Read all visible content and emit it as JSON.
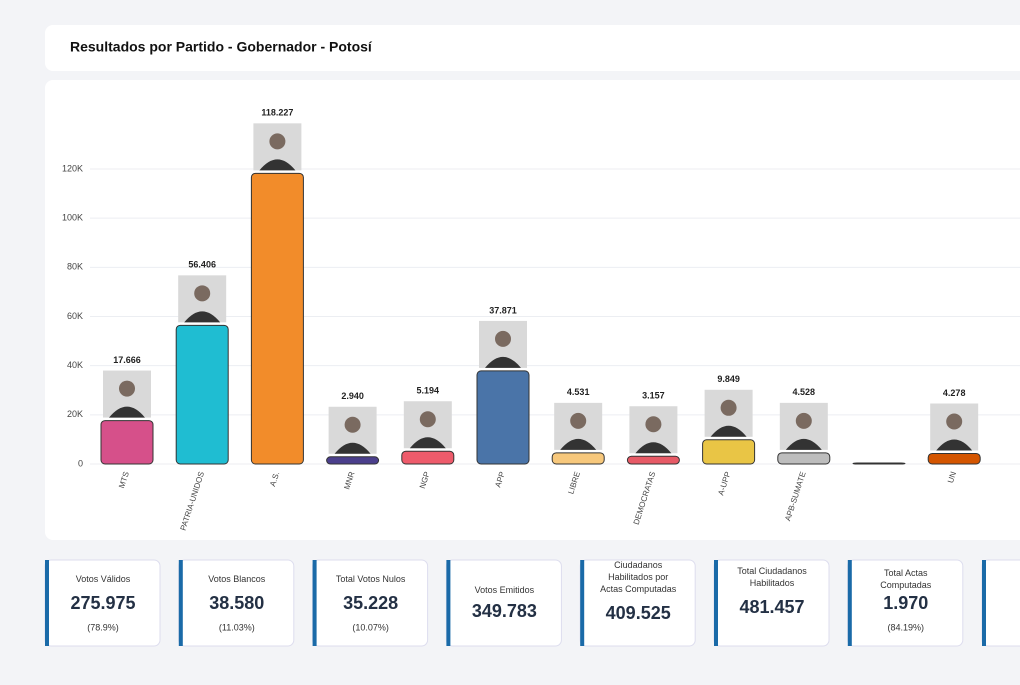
{
  "title": "Resultados por Partido - Gobernador - Potosí",
  "chart_data": {
    "type": "bar",
    "categories": [
      "MTS",
      "PATRIA-UNIDOS",
      "A.S.",
      "MNR",
      "NGP",
      "APP",
      "LIBRE",
      "DEMOCRATAS",
      "A-UPP",
      "APB-SUMATE",
      null,
      "UN"
    ],
    "values": [
      17666,
      56406,
      118227,
      2940,
      5194,
      37871,
      4531,
      3157,
      9849,
      4528,
      300,
      4278
    ],
    "value_labels": [
      "17.666",
      "56.406",
      "118.227",
      "2.940",
      "5.194",
      "37.871",
      "4.531",
      "3.157",
      "9.849",
      "4.528",
      null,
      "4.278"
    ],
    "colors": [
      "#d6508a",
      "#1fbdd2",
      "#f28c2a",
      "#4b3f8c",
      "#ee5b6b",
      "#4a74a8",
      "#f7c87c",
      "#e75a66",
      "#e9c545",
      "#bdbdbd",
      "#444444",
      "#d45500"
    ],
    "ylim": [
      0,
      120000
    ],
    "yticks": [
      0,
      {
        "value": 20000,
        "label": "20K"
      },
      {
        "value": 40000,
        "label": "40K"
      },
      {
        "value": 60000,
        "label": "60K"
      },
      {
        "value": 80000,
        "label": "80K"
      },
      {
        "value": 100000,
        "label": "100K"
      },
      {
        "value": 120000,
        "label": "120K"
      }
    ],
    "grid": true
  },
  "stats": [
    {
      "label": "Votos Válidos",
      "value": "275.975",
      "percent": "(78.9%)"
    },
    {
      "label": "Votos Blancos",
      "value": "38.580",
      "percent": "(11.03%)"
    },
    {
      "label": "Total Votos Nulos",
      "value": "35.228",
      "percent": "(10.07%)"
    },
    {
      "label": "Votos Emitidos",
      "value": "349.783"
    },
    {
      "label": "Ciudadanos Habilitados por Actas Computadas",
      "value": "409.525"
    },
    {
      "label": "Total Ciudadanos Habilitados",
      "value": "481.457"
    },
    {
      "label": "Total Actas Computadas",
      "value": "1.970",
      "percent": "(84.19%)"
    }
  ]
}
